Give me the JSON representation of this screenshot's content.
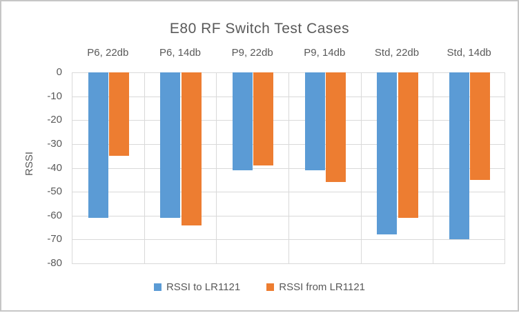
{
  "chart_data": {
    "type": "bar",
    "title": "E80 RF Switch Test Cases",
    "xlabel": "",
    "ylabel": "RSSI",
    "categories": [
      "P6, 22db",
      "P6, 14db",
      "P9, 22db",
      "P9, 14db",
      "Std, 22db",
      "Std, 14db"
    ],
    "series": [
      {
        "name": "RSSI to LR1121",
        "color": "#5B9BD5",
        "values": [
          -61,
          -61,
          -41,
          -41,
          -68,
          -70
        ]
      },
      {
        "name": "RSSI from LR1121",
        "color": "#ED7D31",
        "values": [
          -35,
          -64,
          -39,
          -46,
          -61,
          -45
        ]
      }
    ],
    "ylim": [
      -80,
      0
    ],
    "ytick_step": 10,
    "yticks": [
      "0",
      "-10",
      "-20",
      "-30",
      "-40",
      "-50",
      "-60",
      "-70",
      "-80"
    ],
    "grid": true,
    "bars_anchored_at": "top",
    "legend_position": "bottom",
    "category_labels_position": "top"
  },
  "colors": {
    "text": "#595959",
    "gridline": "#d9d9d9",
    "frame_border": "#c6c6c6",
    "background": "#ffffff"
  }
}
